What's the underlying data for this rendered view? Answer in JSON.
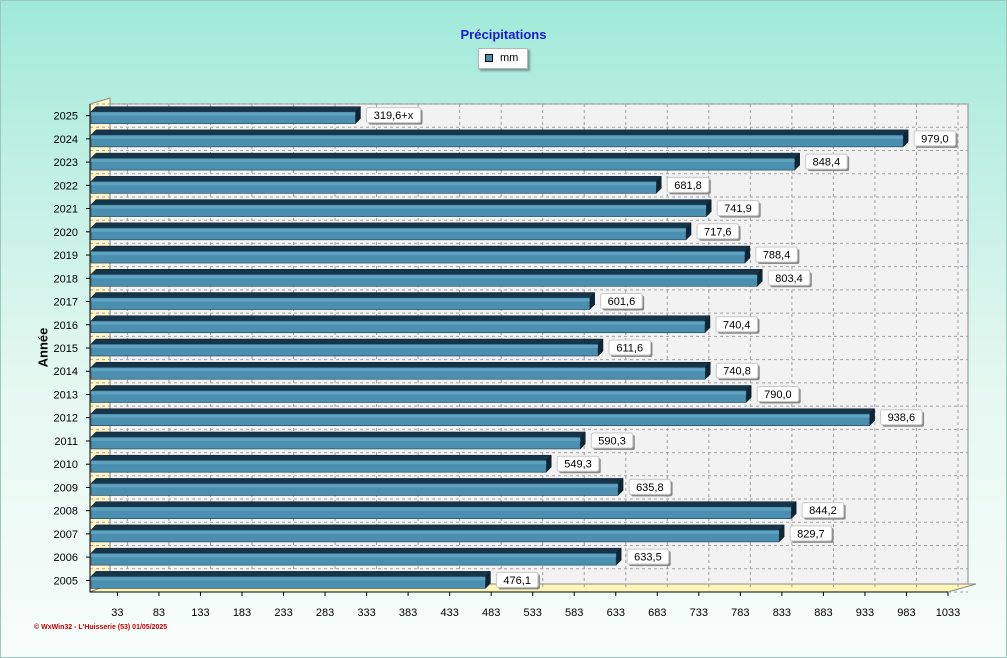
{
  "chart_data": {
    "type": "bar",
    "orientation": "horizontal",
    "title": "Précipitations",
    "ylabel": "Année",
    "xlabel": "",
    "legend": {
      "position": "top-center",
      "entries": [
        "mm"
      ]
    },
    "categories": [
      "2025",
      "2024",
      "2023",
      "2022",
      "2021",
      "2020",
      "2019",
      "2018",
      "2017",
      "2016",
      "2015",
      "2014",
      "2013",
      "2012",
      "2011",
      "2010",
      "2009",
      "2008",
      "2007",
      "2006",
      "2005"
    ],
    "series": [
      {
        "name": "mm",
        "color": "#4a8fb0",
        "values": [
          319.6,
          979.0,
          848.4,
          681.8,
          741.9,
          717.6,
          788.4,
          803.4,
          601.6,
          740.4,
          611.6,
          740.8,
          790.0,
          938.6,
          590.3,
          549.3,
          635.8,
          844.2,
          829.7,
          633.5,
          476.1
        ],
        "labels": [
          "319,6+x",
          "979,0",
          "848,4",
          "681,8",
          "741,9",
          "717,6",
          "788,4",
          "803,4",
          "601,6",
          "740,4",
          "611,6",
          "740,8",
          "790,0",
          "938,6",
          "590,3",
          "549,3",
          "635,8",
          "844,2",
          "829,7",
          "633,5",
          "476,1"
        ]
      }
    ],
    "xlim": [
      0,
      1033
    ],
    "xticks": [
      "33",
      "83",
      "133",
      "183",
      "233",
      "283",
      "333",
      "383",
      "433",
      "483",
      "533",
      "583",
      "633",
      "683",
      "733",
      "783",
      "833",
      "883",
      "933",
      "983",
      "1033"
    ],
    "grid": true
  },
  "credit": "© WxWin32 - L'Huisserie (53)  01/05/2025"
}
